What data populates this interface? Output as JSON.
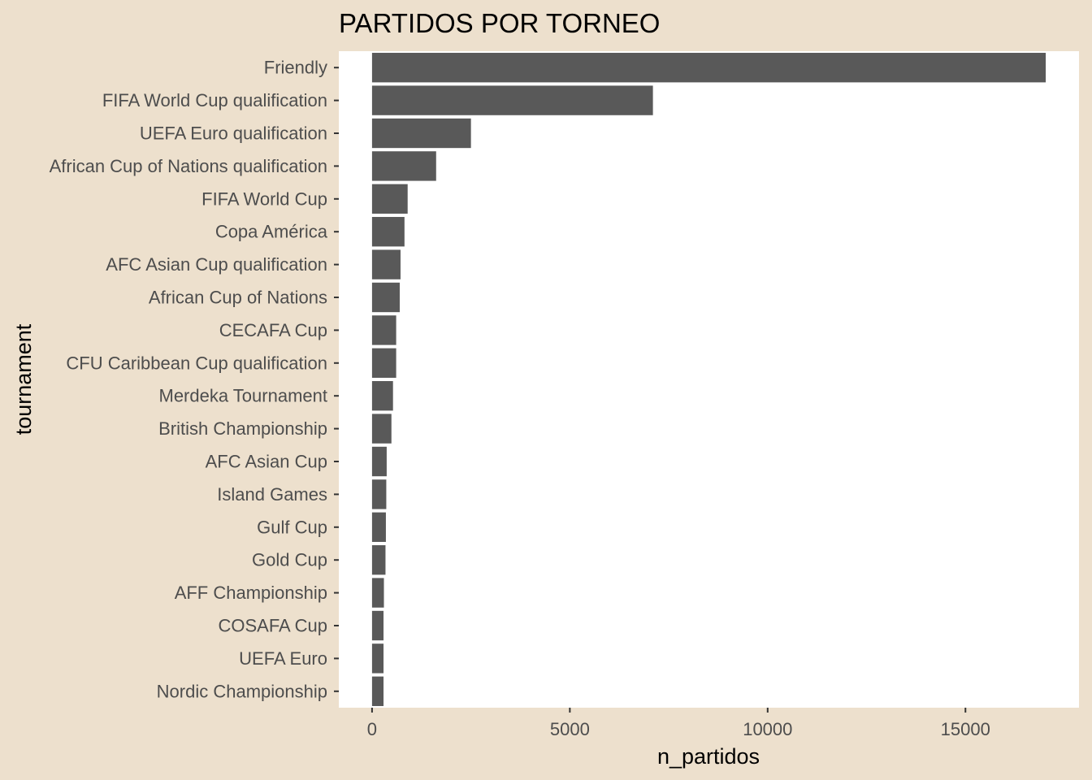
{
  "chart_data": {
    "type": "bar",
    "orientation": "horizontal",
    "title": "PARTIDOS POR TORNEO",
    "xlabel": "n_partidos",
    "ylabel": "tournament",
    "categories": [
      "Friendly",
      "FIFA World Cup qualification",
      "UEFA Euro qualification",
      "African Cup of Nations qualification",
      "FIFA World Cup",
      "Copa América",
      "AFC Asian Cup qualification",
      "African Cup of Nations",
      "CECAFA Cup",
      "CFU Caribbean Cup qualification",
      "Merdeka Tournament",
      "British Championship",
      "AFC Asian Cup",
      "Island Games",
      "Gulf Cup",
      "Gold Cup",
      "AFF Championship",
      "COSAFA Cup",
      "UEFA Euro",
      "Nordic Championship"
    ],
    "values": [
      17029,
      7100,
      2500,
      1620,
      900,
      820,
      720,
      700,
      610,
      610,
      530,
      490,
      370,
      360,
      350,
      340,
      300,
      290,
      290,
      290
    ],
    "xlim": [
      -840,
      17870
    ],
    "x_ticks": [
      0,
      5000,
      10000,
      15000
    ],
    "x_tick_labels": [
      "0",
      "5000",
      "10000",
      "15000"
    ],
    "grid": false,
    "legend": "none",
    "colors": {
      "background": "#EDE0CD",
      "panel": "#FFFFFF",
      "bar": "#595959",
      "tick_text": "#4D4D4D",
      "tick_mark": "#333333",
      "title_text": "#000000"
    }
  }
}
